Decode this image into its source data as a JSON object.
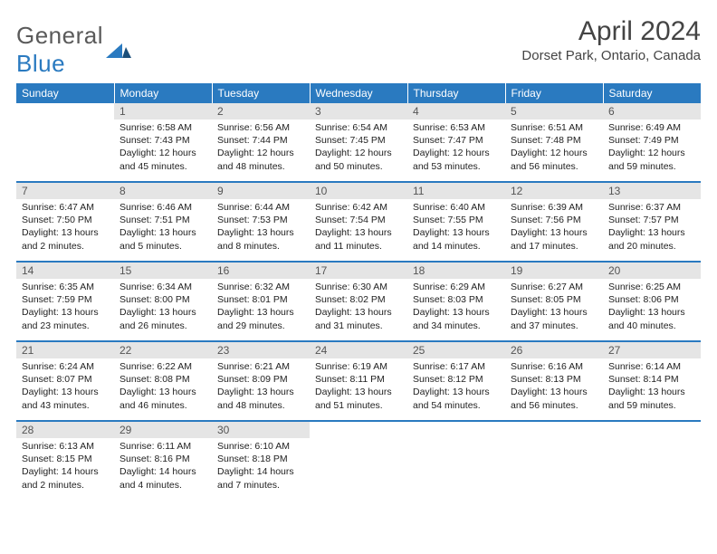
{
  "brand": {
    "part1": "General",
    "part2": "Blue",
    "mark_color": "#2a7ac0"
  },
  "title": "April 2024",
  "location": "Dorset Park, Ontario, Canada",
  "colors": {
    "header_bg": "#2a7ac0",
    "header_text": "#ffffff",
    "daynum_bg": "#e5e5e5",
    "rule": "#2a7ac0"
  },
  "weekdays": [
    "Sunday",
    "Monday",
    "Tuesday",
    "Wednesday",
    "Thursday",
    "Friday",
    "Saturday"
  ],
  "weeks": [
    [
      {
        "n": "",
        "sr": "",
        "ss": "",
        "dl1": "",
        "dl2": "",
        "empty": true
      },
      {
        "n": "1",
        "sr": "Sunrise: 6:58 AM",
        "ss": "Sunset: 7:43 PM",
        "dl1": "Daylight: 12 hours",
        "dl2": "and 45 minutes."
      },
      {
        "n": "2",
        "sr": "Sunrise: 6:56 AM",
        "ss": "Sunset: 7:44 PM",
        "dl1": "Daylight: 12 hours",
        "dl2": "and 48 minutes."
      },
      {
        "n": "3",
        "sr": "Sunrise: 6:54 AM",
        "ss": "Sunset: 7:45 PM",
        "dl1": "Daylight: 12 hours",
        "dl2": "and 50 minutes."
      },
      {
        "n": "4",
        "sr": "Sunrise: 6:53 AM",
        "ss": "Sunset: 7:47 PM",
        "dl1": "Daylight: 12 hours",
        "dl2": "and 53 minutes."
      },
      {
        "n": "5",
        "sr": "Sunrise: 6:51 AM",
        "ss": "Sunset: 7:48 PM",
        "dl1": "Daylight: 12 hours",
        "dl2": "and 56 minutes."
      },
      {
        "n": "6",
        "sr": "Sunrise: 6:49 AM",
        "ss": "Sunset: 7:49 PM",
        "dl1": "Daylight: 12 hours",
        "dl2": "and 59 minutes."
      }
    ],
    [
      {
        "n": "7",
        "sr": "Sunrise: 6:47 AM",
        "ss": "Sunset: 7:50 PM",
        "dl1": "Daylight: 13 hours",
        "dl2": "and 2 minutes."
      },
      {
        "n": "8",
        "sr": "Sunrise: 6:46 AM",
        "ss": "Sunset: 7:51 PM",
        "dl1": "Daylight: 13 hours",
        "dl2": "and 5 minutes."
      },
      {
        "n": "9",
        "sr": "Sunrise: 6:44 AM",
        "ss": "Sunset: 7:53 PM",
        "dl1": "Daylight: 13 hours",
        "dl2": "and 8 minutes."
      },
      {
        "n": "10",
        "sr": "Sunrise: 6:42 AM",
        "ss": "Sunset: 7:54 PM",
        "dl1": "Daylight: 13 hours",
        "dl2": "and 11 minutes."
      },
      {
        "n": "11",
        "sr": "Sunrise: 6:40 AM",
        "ss": "Sunset: 7:55 PM",
        "dl1": "Daylight: 13 hours",
        "dl2": "and 14 minutes."
      },
      {
        "n": "12",
        "sr": "Sunrise: 6:39 AM",
        "ss": "Sunset: 7:56 PM",
        "dl1": "Daylight: 13 hours",
        "dl2": "and 17 minutes."
      },
      {
        "n": "13",
        "sr": "Sunrise: 6:37 AM",
        "ss": "Sunset: 7:57 PM",
        "dl1": "Daylight: 13 hours",
        "dl2": "and 20 minutes."
      }
    ],
    [
      {
        "n": "14",
        "sr": "Sunrise: 6:35 AM",
        "ss": "Sunset: 7:59 PM",
        "dl1": "Daylight: 13 hours",
        "dl2": "and 23 minutes."
      },
      {
        "n": "15",
        "sr": "Sunrise: 6:34 AM",
        "ss": "Sunset: 8:00 PM",
        "dl1": "Daylight: 13 hours",
        "dl2": "and 26 minutes."
      },
      {
        "n": "16",
        "sr": "Sunrise: 6:32 AM",
        "ss": "Sunset: 8:01 PM",
        "dl1": "Daylight: 13 hours",
        "dl2": "and 29 minutes."
      },
      {
        "n": "17",
        "sr": "Sunrise: 6:30 AM",
        "ss": "Sunset: 8:02 PM",
        "dl1": "Daylight: 13 hours",
        "dl2": "and 31 minutes."
      },
      {
        "n": "18",
        "sr": "Sunrise: 6:29 AM",
        "ss": "Sunset: 8:03 PM",
        "dl1": "Daylight: 13 hours",
        "dl2": "and 34 minutes."
      },
      {
        "n": "19",
        "sr": "Sunrise: 6:27 AM",
        "ss": "Sunset: 8:05 PM",
        "dl1": "Daylight: 13 hours",
        "dl2": "and 37 minutes."
      },
      {
        "n": "20",
        "sr": "Sunrise: 6:25 AM",
        "ss": "Sunset: 8:06 PM",
        "dl1": "Daylight: 13 hours",
        "dl2": "and 40 minutes."
      }
    ],
    [
      {
        "n": "21",
        "sr": "Sunrise: 6:24 AM",
        "ss": "Sunset: 8:07 PM",
        "dl1": "Daylight: 13 hours",
        "dl2": "and 43 minutes."
      },
      {
        "n": "22",
        "sr": "Sunrise: 6:22 AM",
        "ss": "Sunset: 8:08 PM",
        "dl1": "Daylight: 13 hours",
        "dl2": "and 46 minutes."
      },
      {
        "n": "23",
        "sr": "Sunrise: 6:21 AM",
        "ss": "Sunset: 8:09 PM",
        "dl1": "Daylight: 13 hours",
        "dl2": "and 48 minutes."
      },
      {
        "n": "24",
        "sr": "Sunrise: 6:19 AM",
        "ss": "Sunset: 8:11 PM",
        "dl1": "Daylight: 13 hours",
        "dl2": "and 51 minutes."
      },
      {
        "n": "25",
        "sr": "Sunrise: 6:17 AM",
        "ss": "Sunset: 8:12 PM",
        "dl1": "Daylight: 13 hours",
        "dl2": "and 54 minutes."
      },
      {
        "n": "26",
        "sr": "Sunrise: 6:16 AM",
        "ss": "Sunset: 8:13 PM",
        "dl1": "Daylight: 13 hours",
        "dl2": "and 56 minutes."
      },
      {
        "n": "27",
        "sr": "Sunrise: 6:14 AM",
        "ss": "Sunset: 8:14 PM",
        "dl1": "Daylight: 13 hours",
        "dl2": "and 59 minutes."
      }
    ],
    [
      {
        "n": "28",
        "sr": "Sunrise: 6:13 AM",
        "ss": "Sunset: 8:15 PM",
        "dl1": "Daylight: 14 hours",
        "dl2": "and 2 minutes."
      },
      {
        "n": "29",
        "sr": "Sunrise: 6:11 AM",
        "ss": "Sunset: 8:16 PM",
        "dl1": "Daylight: 14 hours",
        "dl2": "and 4 minutes."
      },
      {
        "n": "30",
        "sr": "Sunrise: 6:10 AM",
        "ss": "Sunset: 8:18 PM",
        "dl1": "Daylight: 14 hours",
        "dl2": "and 7 minutes."
      },
      {
        "n": "",
        "sr": "",
        "ss": "",
        "dl1": "",
        "dl2": "",
        "empty": true
      },
      {
        "n": "",
        "sr": "",
        "ss": "",
        "dl1": "",
        "dl2": "",
        "empty": true
      },
      {
        "n": "",
        "sr": "",
        "ss": "",
        "dl1": "",
        "dl2": "",
        "empty": true
      },
      {
        "n": "",
        "sr": "",
        "ss": "",
        "dl1": "",
        "dl2": "",
        "empty": true
      }
    ]
  ]
}
